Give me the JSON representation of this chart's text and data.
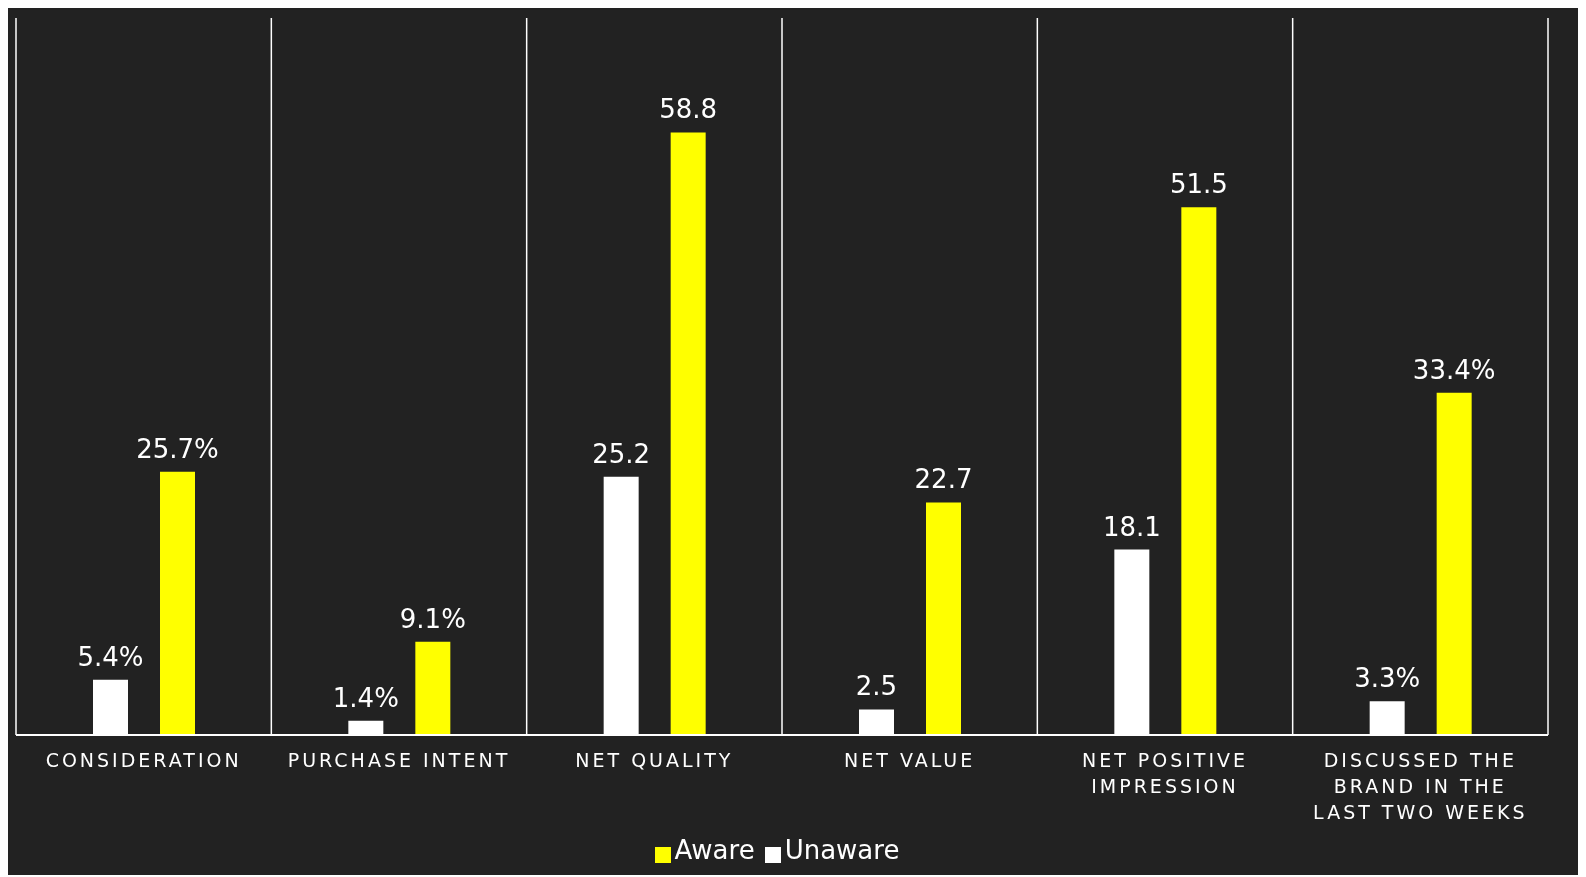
{
  "chart_data": {
    "type": "bar",
    "categories": [
      "CONSIDERATION",
      "PURCHASE INTENT",
      "NET QUALITY",
      "NET VALUE",
      "NET POSITIVE IMPRESSION",
      "DISCUSSED THE BRAND IN THE LAST TWO WEEKS"
    ],
    "series": [
      {
        "name": "Unaware",
        "color": "#ffffff",
        "values": [
          5.4,
          1.4,
          25.2,
          2.5,
          18.1,
          3.3
        ],
        "value_labels": [
          "5.4%",
          "1.4%",
          "25.2",
          "2.5",
          "18.1",
          "3.3%"
        ]
      },
      {
        "name": "Aware",
        "color": "#ffff00",
        "values": [
          25.7,
          9.1,
          58.8,
          22.7,
          51.5,
          33.4
        ],
        "value_labels": [
          "25.7%",
          "9.1%",
          "58.8",
          "22.7",
          "51.5",
          "33.4%"
        ]
      }
    ],
    "grid": "x",
    "legend": "bottom"
  }
}
